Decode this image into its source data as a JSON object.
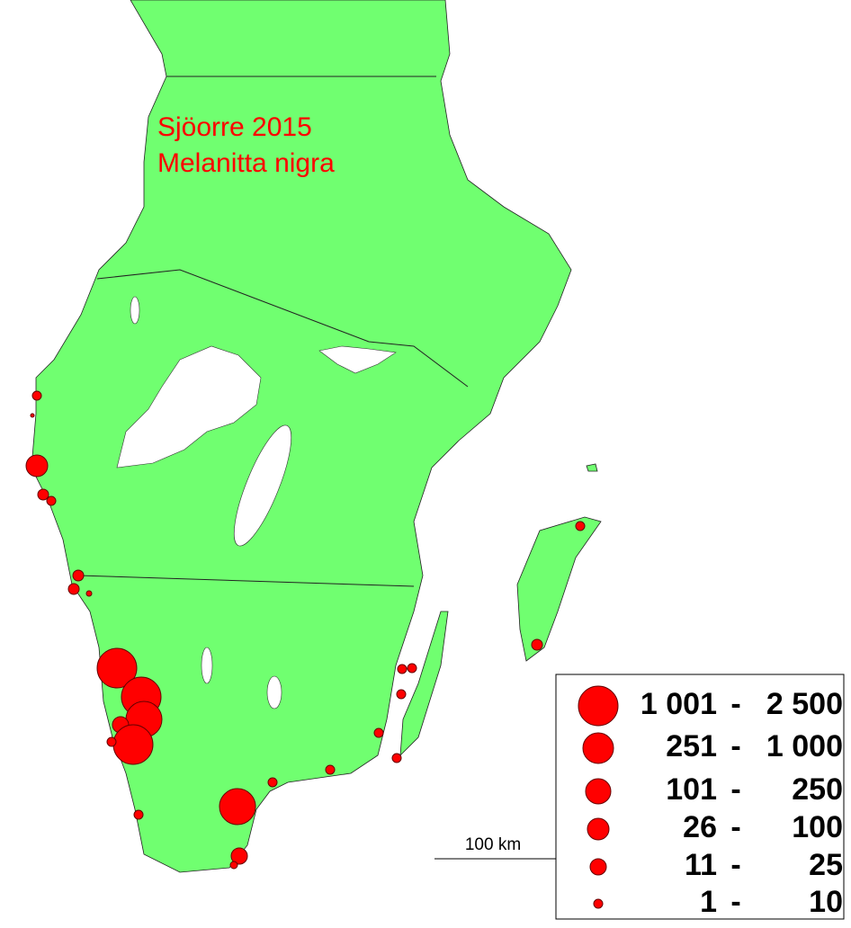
{
  "map": {
    "title": "Sjöorre 2015",
    "subtitle": "Melanitta nigra",
    "scale_label": "100 km",
    "legend": {
      "separator": "-",
      "rows": [
        {
          "min": "1 001",
          "max": "2 500"
        },
        {
          "min": "251",
          "max": "1 000"
        },
        {
          "min": "101",
          "max": "250"
        },
        {
          "min": "26",
          "max": "100"
        },
        {
          "min": "11",
          "max": "25"
        },
        {
          "min": "1",
          "max": "10"
        }
      ]
    }
  }
}
